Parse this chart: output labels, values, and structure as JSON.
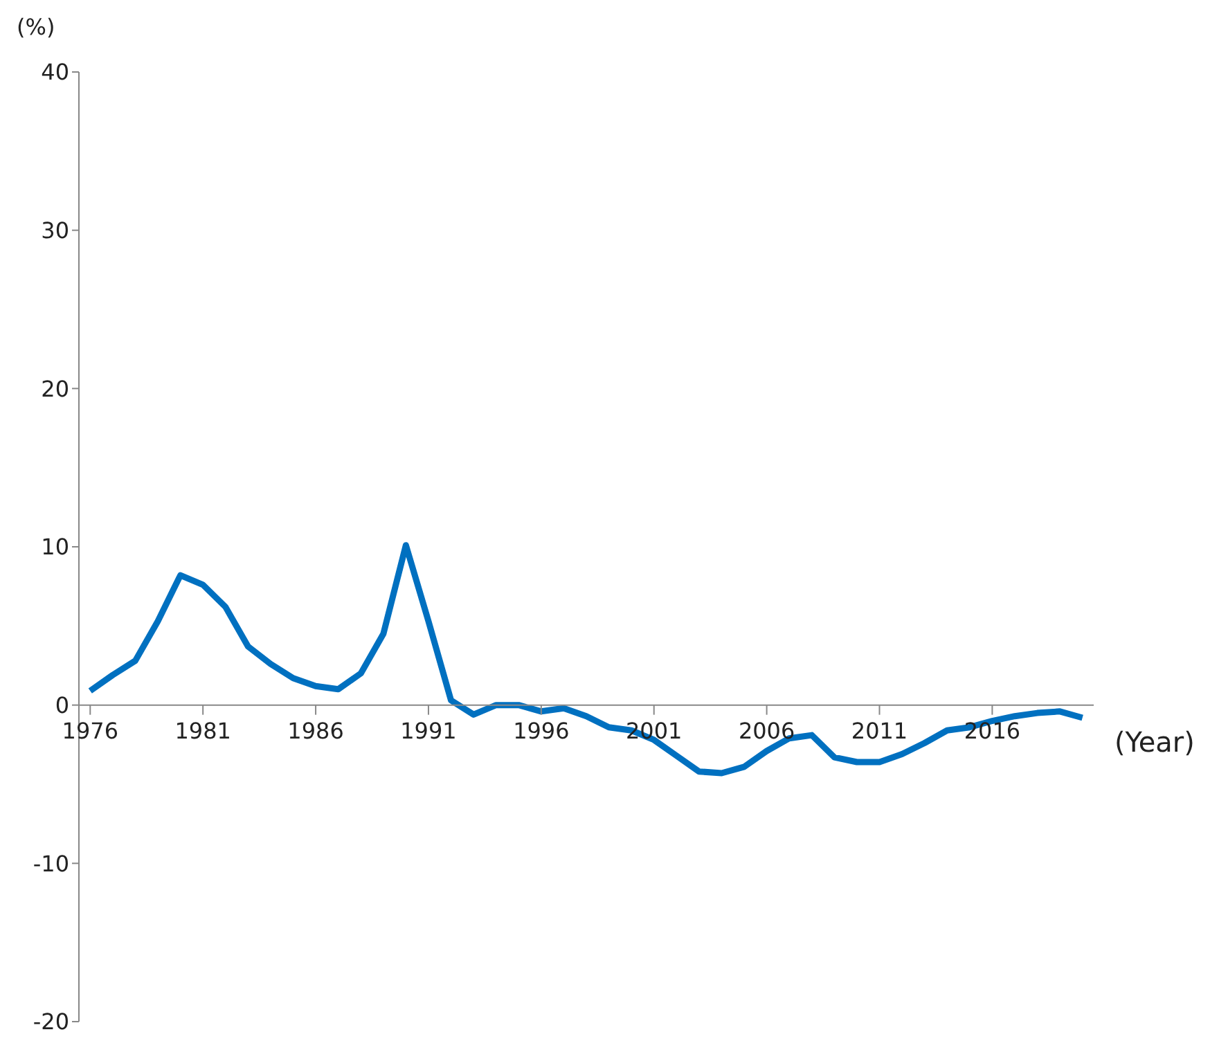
{
  "chart_data": {
    "type": "line",
    "xlabel": "(Year)",
    "ylabel": "(%)",
    "x": [
      1976,
      1977,
      1978,
      1979,
      1980,
      1981,
      1982,
      1983,
      1984,
      1985,
      1986,
      1987,
      1988,
      1989,
      1990,
      1991,
      1992,
      1993,
      1994,
      1995,
      1996,
      1997,
      1998,
      1999,
      2000,
      2001,
      2002,
      2003,
      2004,
      2005,
      2006,
      2007,
      2008,
      2009,
      2010,
      2011,
      2012,
      2013,
      2014,
      2015,
      2016,
      2017,
      2018,
      2019,
      2020
    ],
    "series": [
      {
        "color": "#0070c0",
        "values": [
          0.9,
          1.9,
          2.8,
          5.3,
          8.2,
          7.6,
          6.2,
          3.7,
          2.6,
          1.7,
          1.2,
          1.0,
          2.0,
          4.5,
          10.1,
          5.3,
          0.3,
          -0.6,
          0,
          0,
          -0.4,
          -0.2,
          -0.7,
          -1.4,
          -1.6,
          -2.2,
          -3.2,
          -4.2,
          -4.3,
          -3.9,
          -2.9,
          -2.1,
          -1.9,
          -3.3,
          -3.6,
          -3.6,
          -3.1,
          -2.4,
          -1.6,
          -1.4,
          -1.0,
          -0.7,
          -0.5,
          -0.4,
          -0.8
        ]
      }
    ],
    "xlim": [
      1975.5,
      2020.5
    ],
    "xticks": [
      1976,
      1981,
      1986,
      1991,
      1996,
      2001,
      2006,
      2011,
      2016
    ],
    "ylim": [
      -20,
      40
    ],
    "yticks": [
      -20,
      -10,
      0,
      10,
      20,
      30,
      40
    ],
    "grid": false,
    "legend": false,
    "marker": "none",
    "line_style": "solid"
  }
}
